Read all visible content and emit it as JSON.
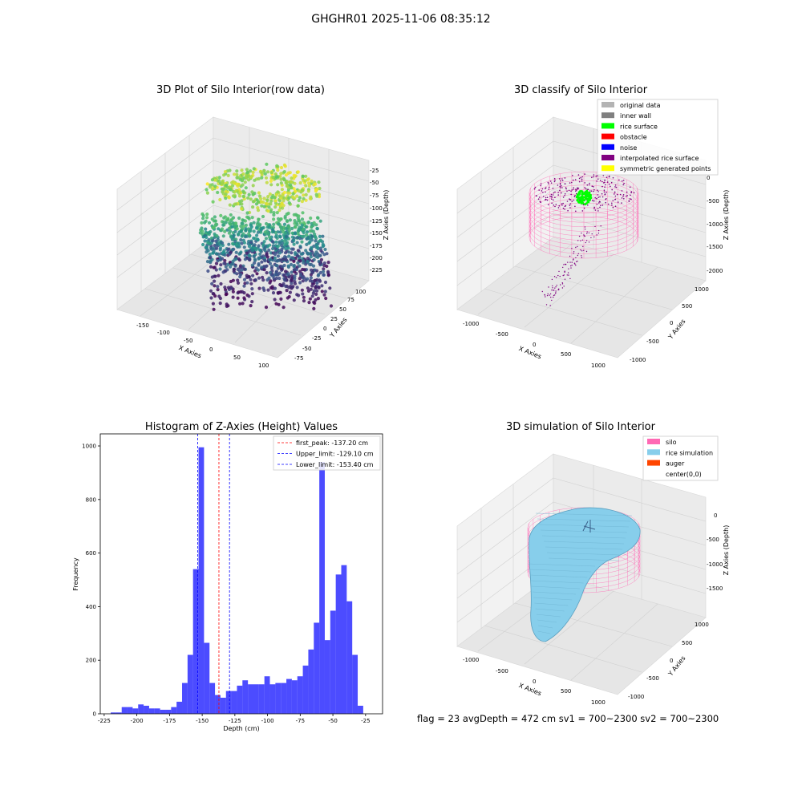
{
  "figure": {
    "suptitle": "GHGHR01 2025-11-06 08:35:12",
    "status_line": "flag = 23   avgDepth = 472 cm   sv1 = 700~2300   sv2 = 700~2300"
  },
  "chart_data": [
    {
      "type": "scatter",
      "projection": "3d",
      "title": "3D Plot of Silo Interior(row data)",
      "xlabel": "X Axies",
      "ylabel": "Y Axies",
      "zlabel": "Z Axies (Depth)",
      "xticks": [
        "-150",
        "-100",
        "-50",
        "0",
        "50",
        "100"
      ],
      "yticks": [
        "-75",
        "-50",
        "-25",
        "0",
        "25",
        "50",
        "75",
        "100"
      ],
      "zticks": [
        "-225",
        "-200",
        "-175",
        "-150",
        "-125",
        "-100",
        "-75",
        "-50",
        "-25"
      ],
      "xlim": [
        -175,
        110
      ],
      "ylim": [
        -85,
        110
      ],
      "zlim": [
        -235,
        -15
      ],
      "colormap": "viridis"
    },
    {
      "type": "scatter",
      "projection": "3d",
      "title": "3D classify of Silo Interior",
      "xlabel": "X Axies",
      "ylabel": "Y Axies",
      "zlabel": "Z Axies (Depth)",
      "xticks": [
        "-1000",
        "-500",
        "0",
        "500",
        "1000"
      ],
      "yticks": [
        "-1000",
        "-500",
        "0",
        "500",
        "1000"
      ],
      "zticks": [
        "-2000",
        "-1500",
        "-1000",
        "-500",
        "0"
      ],
      "legend": [
        {
          "label": "original data",
          "color": "#b3b3b3"
        },
        {
          "label": "inner wall",
          "color": "#808080"
        },
        {
          "label": "rice surface",
          "color": "#00ff00"
        },
        {
          "label": "obstacle",
          "color": "#ff0000"
        },
        {
          "label": "noise",
          "color": "#0000ff"
        },
        {
          "label": "interpolated rice surface",
          "color": "#800080"
        },
        {
          "label": "symmetric generated points",
          "color": "#ffff00"
        }
      ],
      "legend_loc": "upper right"
    },
    {
      "type": "bar",
      "title": "Histogram of Z-Axies (Height) Values",
      "xlabel": "Depth (cm)",
      "ylabel": "Frequency",
      "xticks": [
        -225,
        -200,
        -175,
        -150,
        -125,
        -100,
        -75,
        -50,
        -25
      ],
      "yticks": [
        0,
        200,
        400,
        600,
        800,
        1000
      ],
      "xlim": [
        -228,
        -12
      ],
      "ylim": [
        0,
        1045
      ],
      "bin_width": 4.2,
      "bin_start": -220,
      "values": [
        5,
        5,
        25,
        25,
        20,
        35,
        30,
        20,
        20,
        15,
        15,
        25,
        45,
        115,
        220,
        540,
        995,
        265,
        115,
        70,
        60,
        85,
        85,
        105,
        125,
        110,
        110,
        110,
        140,
        110,
        115,
        115,
        130,
        125,
        140,
        180,
        240,
        340,
        940,
        275,
        385,
        520,
        555,
        420,
        220,
        30
      ],
      "bar_color": "#0000ff",
      "vlines": [
        {
          "label": "first_peak: -137.20 cm",
          "x": -137.2,
          "color": "#ff0000"
        },
        {
          "label": "Upper_limit: -129.10 cm",
          "x": -129.1,
          "color": "#0000ff"
        },
        {
          "label": "Lower_limit: -153.40 cm",
          "x": -153.4,
          "color": "#0000ff"
        }
      ],
      "legend_loc": "upper right"
    },
    {
      "type": "surface",
      "projection": "3d",
      "title": "3D simulation of Silo Interior",
      "xlabel": "X Axies",
      "ylabel": "Y Axies",
      "zlabel": "Z Axies (Depth)",
      "xticks": [
        "-1000",
        "-500",
        "0",
        "500",
        "1000"
      ],
      "yticks": [
        "-1000",
        "-500",
        "0",
        "500",
        "1000"
      ],
      "zticks": [
        "-1500",
        "-1000",
        "-500",
        "0"
      ],
      "legend": [
        {
          "label": "silo",
          "color": "#ff69b4"
        },
        {
          "label": "rice simulation",
          "color": "#87ceeb"
        },
        {
          "label": "auger",
          "color": "#ff4500"
        },
        {
          "label": "center(0,0)",
          "color": "#ffffff"
        }
      ],
      "legend_loc": "upper right"
    }
  ]
}
